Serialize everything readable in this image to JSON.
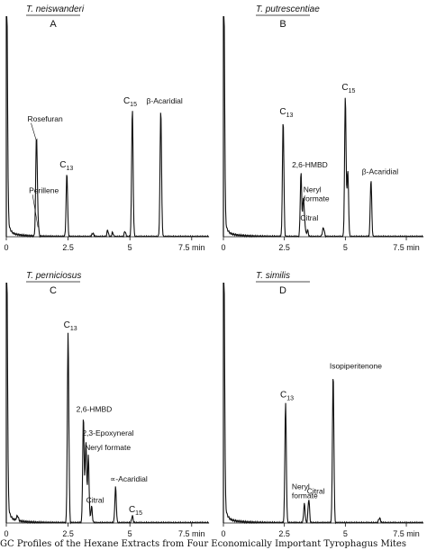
{
  "caption": "GC Profiles of the Hexane Extracts from Four Economically Important Tyrophagus Mites",
  "chart_data": [
    {
      "type": "line",
      "panel": "A",
      "title": "T. neiswanderi",
      "x_unit": "min",
      "xlim": [
        0,
        8.2
      ],
      "ylim": [
        0,
        100
      ],
      "ticks": [
        {
          "x": 0,
          "label": "0"
        },
        {
          "x": 2.5,
          "label": "2.5"
        },
        {
          "x": 5,
          "label": "5"
        },
        {
          "x": 7.5,
          "label": "7.5 min"
        }
      ],
      "peaks": [
        {
          "x": 0.02,
          "h": 100,
          "w": 0.03
        },
        {
          "x": 1.22,
          "h": 45,
          "w": 0.03,
          "label": "Rosefuran"
        },
        {
          "x": 1.28,
          "h": 6,
          "w": 0.03,
          "label": "Perillene"
        },
        {
          "x": 2.45,
          "h": 29,
          "w": 0.03,
          "label": "C13"
        },
        {
          "x": 3.5,
          "h": 1.5,
          "w": 0.04
        },
        {
          "x": 4.1,
          "h": 3,
          "w": 0.03
        },
        {
          "x": 4.3,
          "h": 2,
          "w": 0.03
        },
        {
          "x": 4.8,
          "h": 2.5,
          "w": 0.03
        },
        {
          "x": 5.1,
          "h": 58,
          "w": 0.03,
          "label": "C15"
        },
        {
          "x": 6.25,
          "h": 58,
          "w": 0.03,
          "label": "β-Acaridial"
        }
      ]
    },
    {
      "type": "line",
      "panel": "B",
      "title": "T. putrescentiae",
      "x_unit": "min",
      "xlim": [
        0,
        8.2
      ],
      "ylim": [
        0,
        100
      ],
      "ticks": [
        {
          "x": 0,
          "label": "0"
        },
        {
          "x": 2.5,
          "label": "2.5"
        },
        {
          "x": 5,
          "label": "5"
        },
        {
          "x": 7.5,
          "label": "7.5 min"
        }
      ],
      "peaks": [
        {
          "x": 0.02,
          "h": 100,
          "w": 0.03
        },
        {
          "x": 2.45,
          "h": 53,
          "w": 0.03,
          "label": "C13"
        },
        {
          "x": 3.18,
          "h": 29,
          "w": 0.03,
          "label": "2,6-HMBD"
        },
        {
          "x": 3.28,
          "h": 17,
          "w": 0.03,
          "label": "Neryl formate"
        },
        {
          "x": 3.34,
          "h": 5,
          "w": 0.03,
          "label": "Citral"
        },
        {
          "x": 3.45,
          "h": 3,
          "w": 0.03
        },
        {
          "x": 4.1,
          "h": 4,
          "w": 0.04
        },
        {
          "x": 5.0,
          "h": 64,
          "w": 0.03,
          "label": "C15"
        },
        {
          "x": 5.1,
          "h": 30,
          "w": 0.03
        },
        {
          "x": 6.05,
          "h": 26,
          "w": 0.03,
          "label": "β-Acaridial"
        }
      ]
    },
    {
      "type": "line",
      "panel": "C",
      "title": "T. perniciosus",
      "x_unit": "min",
      "xlim": [
        0,
        8.2
      ],
      "ylim": [
        0,
        100
      ],
      "ticks": [
        {
          "x": 0,
          "label": "0"
        },
        {
          "x": 2.5,
          "label": "2.5"
        },
        {
          "x": 5,
          "label": "5"
        },
        {
          "x": 7.5,
          "label": "7.5 min"
        }
      ],
      "peaks": [
        {
          "x": 0.02,
          "h": 100,
          "w": 0.03
        },
        {
          "x": 0.45,
          "h": 2,
          "w": 0.04
        },
        {
          "x": 2.5,
          "h": 79,
          "w": 0.03,
          "label": "C13"
        },
        {
          "x": 3.12,
          "h": 44,
          "w": 0.03,
          "label": "2,6-HMBD"
        },
        {
          "x": 3.22,
          "h": 34,
          "w": 0.03,
          "label": "2,3-Epoxyneral"
        },
        {
          "x": 3.32,
          "h": 28,
          "w": 0.03,
          "label": "Neryl formate"
        },
        {
          "x": 3.45,
          "h": 7,
          "w": 0.03,
          "label": "Citral"
        },
        {
          "x": 4.42,
          "h": 15,
          "w": 0.03,
          "label": "∝-Acaridial"
        },
        {
          "x": 5.1,
          "h": 3,
          "w": 0.03,
          "label": "C15"
        }
      ]
    },
    {
      "type": "line",
      "panel": "D",
      "title": "T. similis",
      "x_unit": "min",
      "xlim": [
        0,
        8.2
      ],
      "ylim": [
        0,
        100
      ],
      "ticks": [
        {
          "x": 0,
          "label": "0"
        },
        {
          "x": 2.5,
          "label": "2.5"
        },
        {
          "x": 5,
          "label": "5"
        },
        {
          "x": 7.5,
          "label": "7.5 min"
        }
      ],
      "peaks": [
        {
          "x": 0.02,
          "h": 100,
          "w": 0.03
        },
        {
          "x": 2.55,
          "h": 50,
          "w": 0.03,
          "label": "C13"
        },
        {
          "x": 3.32,
          "h": 8,
          "w": 0.03,
          "label": "Neryl formate"
        },
        {
          "x": 3.5,
          "h": 10,
          "w": 0.03,
          "label": "Citral"
        },
        {
          "x": 4.5,
          "h": 62,
          "w": 0.03,
          "label": "Isopiperitenone"
        },
        {
          "x": 6.4,
          "h": 2,
          "w": 0.04
        }
      ]
    }
  ]
}
